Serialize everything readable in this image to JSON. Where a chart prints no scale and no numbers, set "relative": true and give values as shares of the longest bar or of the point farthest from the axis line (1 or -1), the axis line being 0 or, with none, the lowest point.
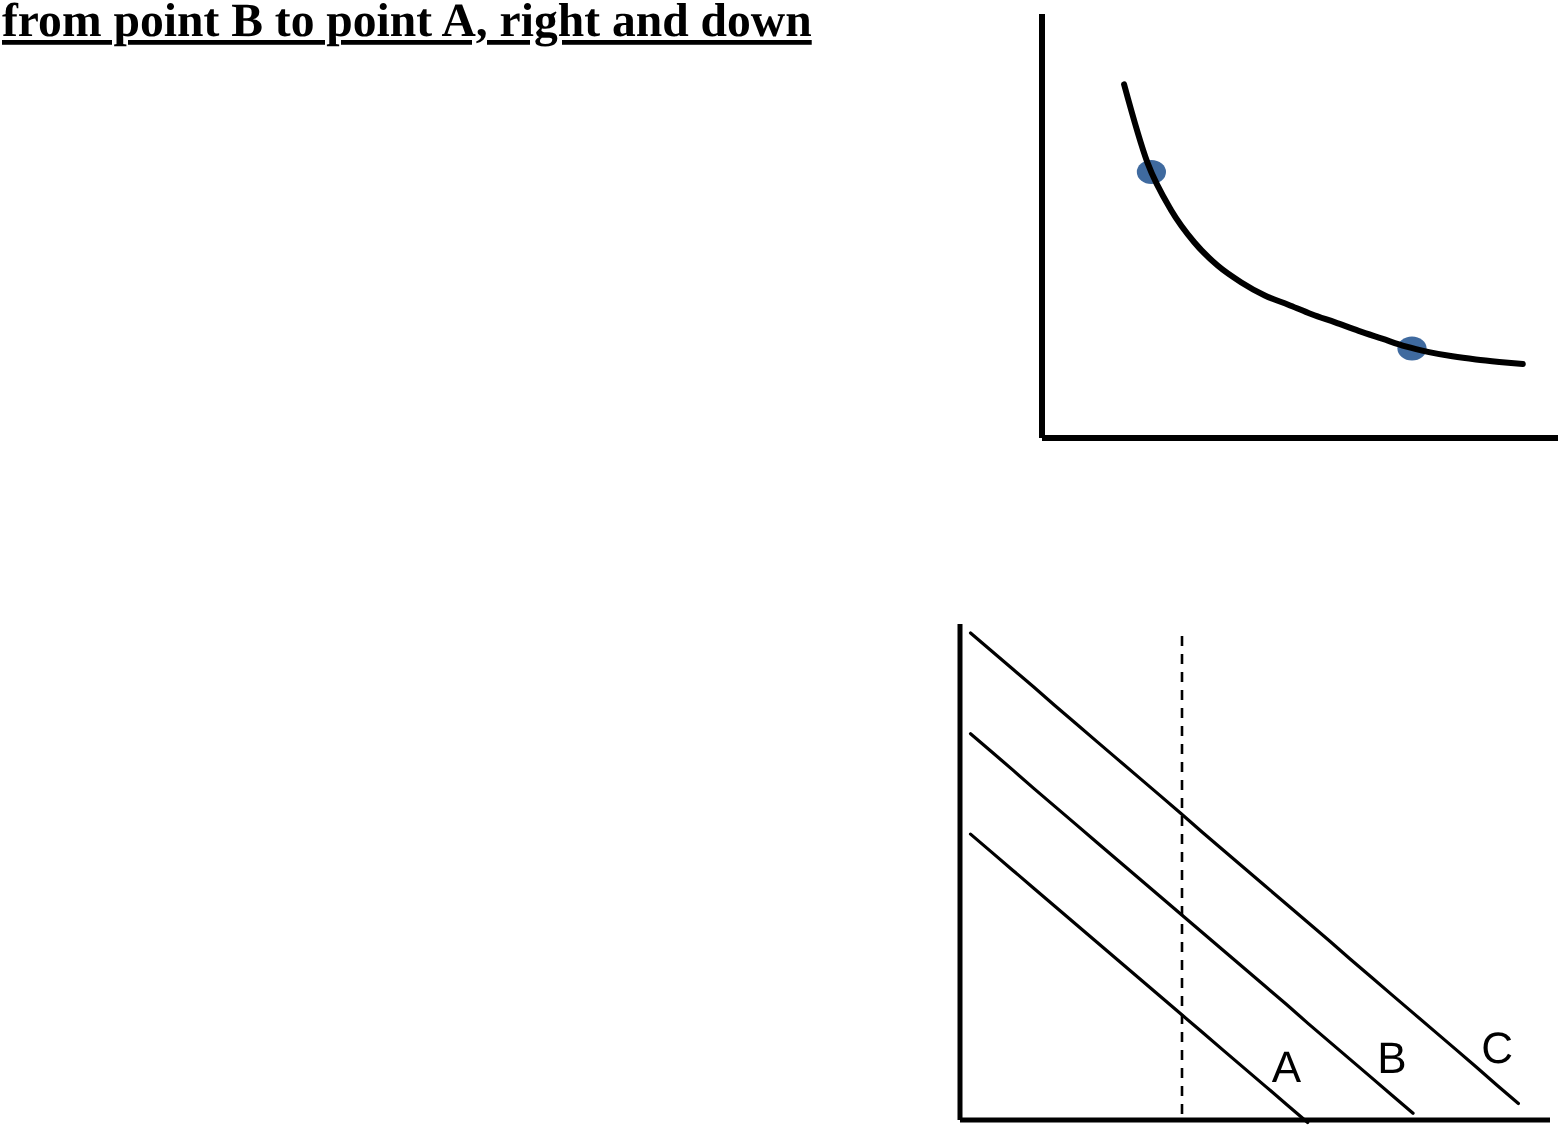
{
  "chart_data": [
    {
      "type": "other",
      "title": "from point B to point A, right and down"
    },
    {
      "type": "line",
      "relative": true,
      "categories": [
        null,
        null,
        null,
        null,
        null,
        null,
        null,
        null,
        null,
        null,
        null,
        null,
        null,
        null,
        null,
        null,
        null,
        null,
        null,
        null,
        null,
        null
      ],
      "series": [
        {
          "color": "#000000",
          "values": [
            null,
            null,
            null,
            1,
            0.778,
            0.645,
            0.553,
            0.487,
            0.44,
            0.403,
            0.377,
            0.35,
            0.327,
            0.303,
            0.281,
            0.259,
            0.243,
            0.231,
            0.222,
            0.215,
            0.209,
            null
          ]
        }
      ]
    },
    {
      "type": "line",
      "relative": true,
      "categories": [
        null,
        null,
        null,
        null,
        null,
        null,
        null,
        null,
        null,
        null,
        null,
        null,
        null,
        null,
        null,
        null,
        null,
        null,
        null,
        null,
        null,
        null,
        null,
        null,
        null,
        null,
        null,
        null
      ],
      "series": [
        {
          "name": "A",
          "color": "#000000",
          "values": [
            0.587,
            0.55,
            0.513,
            0.476,
            0.439,
            0.402,
            0.365,
            0.328,
            0.291,
            0.254,
            0.217,
            0.18,
            0.143,
            0.106,
            0.069,
            0.032,
            -0.005,
            null,
            null,
            null,
            null,
            null,
            null,
            null,
            null,
            null,
            null,
            null
          ]
        },
        {
          "name": "B",
          "color": "#000000",
          "values": [
            0.793,
            0.756,
            0.719,
            0.681,
            0.644,
            0.607,
            0.57,
            0.533,
            0.496,
            0.459,
            0.422,
            0.385,
            0.348,
            0.311,
            0.274,
            0.237,
            0.199,
            0.162,
            0.125,
            0.088,
            0.051,
            0.014,
            null,
            null,
            null,
            null,
            null,
            null
          ]
        },
        {
          "name": "C",
          "color": "#000000",
          "values": [
            1,
            0.963,
            0.926,
            0.889,
            0.851,
            0.814,
            0.777,
            0.74,
            0.703,
            0.666,
            0.629,
            0.591,
            0.554,
            0.517,
            0.48,
            0.443,
            0.406,
            0.369,
            0.331,
            0.294,
            0.257,
            0.22,
            0.183,
            0.146,
            0.109,
            0.071,
            0.034,
            null
          ]
        }
      ]
    }
  ]
}
